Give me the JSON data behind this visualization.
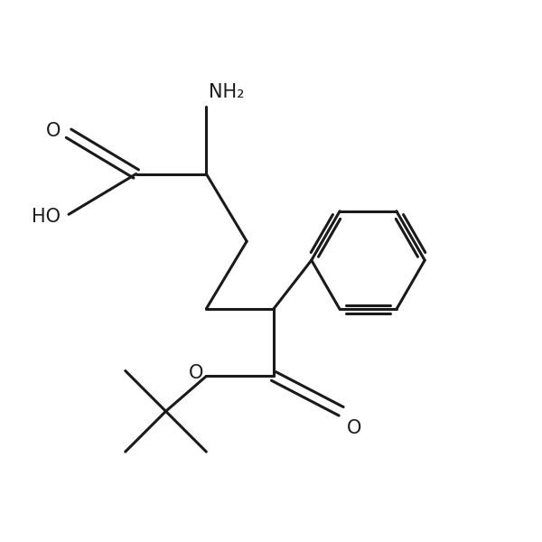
{
  "background_color": "#ffffff",
  "line_color": "#1a1a1a",
  "line_width": 2.2,
  "font_size": 15,
  "figsize": [
    6.0,
    6.0
  ],
  "dpi": 100,
  "xlim": [
    0,
    10
  ],
  "ylim": [
    0,
    10
  ]
}
